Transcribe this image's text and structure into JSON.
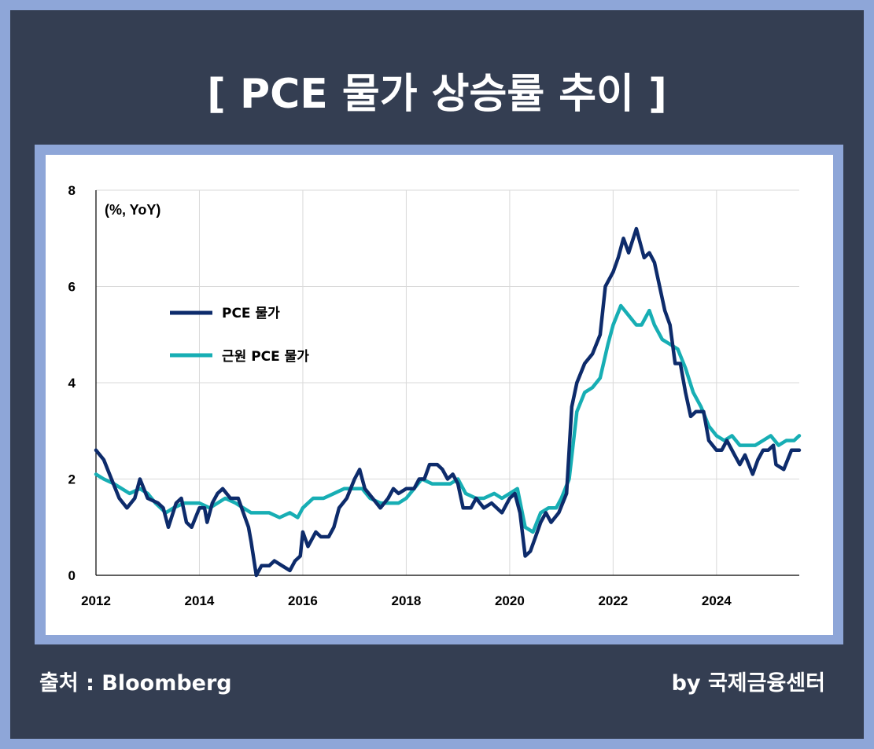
{
  "title": "[ PCE 물가 상승률 추이 ]",
  "footer": {
    "source": "출처 : Bloomberg",
    "credit": "by 국제금융센터"
  },
  "colors": {
    "background": "#343e52",
    "border": "#8ea6d8",
    "series_pce": "#0d2b6b",
    "series_core": "#17aeb4"
  },
  "chart_data": {
    "type": "line",
    "unit_label": "(%, YoY)",
    "xlabel": "",
    "ylabel": "",
    "xlim": [
      2012.0,
      2025.6
    ],
    "ylim": [
      0,
      8
    ],
    "x_ticks": [
      "2012",
      "2014",
      "2016",
      "2018",
      "2020",
      "2022",
      "2024"
    ],
    "y_ticks": [
      "0",
      "2",
      "4",
      "6",
      "8"
    ],
    "grid": true,
    "legend_position": "upper-left",
    "series": [
      {
        "name": "PCE 물가",
        "color": "#0d2b6b",
        "points": [
          [
            2012.0,
            2.6
          ],
          [
            2012.15,
            2.4
          ],
          [
            2012.3,
            2.0
          ],
          [
            2012.45,
            1.6
          ],
          [
            2012.6,
            1.4
          ],
          [
            2012.75,
            1.6
          ],
          [
            2012.85,
            2.0
          ],
          [
            2013.0,
            1.6
          ],
          [
            2013.2,
            1.5
          ],
          [
            2013.3,
            1.4
          ],
          [
            2013.4,
            1.0
          ],
          [
            2013.55,
            1.5
          ],
          [
            2013.65,
            1.6
          ],
          [
            2013.75,
            1.1
          ],
          [
            2013.85,
            1.0
          ],
          [
            2014.0,
            1.4
          ],
          [
            2014.1,
            1.4
          ],
          [
            2014.15,
            1.1
          ],
          [
            2014.25,
            1.5
          ],
          [
            2014.35,
            1.7
          ],
          [
            2014.45,
            1.8
          ],
          [
            2014.6,
            1.6
          ],
          [
            2014.75,
            1.6
          ],
          [
            2014.85,
            1.3
          ],
          [
            2014.95,
            1.0
          ],
          [
            2015.0,
            0.7
          ],
          [
            2015.1,
            0.0
          ],
          [
            2015.2,
            0.2
          ],
          [
            2015.35,
            0.2
          ],
          [
            2015.45,
            0.3
          ],
          [
            2015.6,
            0.2
          ],
          [
            2015.75,
            0.1
          ],
          [
            2015.85,
            0.3
          ],
          [
            2015.95,
            0.4
          ],
          [
            2016.0,
            0.9
          ],
          [
            2016.1,
            0.6
          ],
          [
            2016.25,
            0.9
          ],
          [
            2016.35,
            0.8
          ],
          [
            2016.5,
            0.8
          ],
          [
            2016.6,
            1.0
          ],
          [
            2016.7,
            1.4
          ],
          [
            2016.85,
            1.6
          ],
          [
            2017.0,
            2.0
          ],
          [
            2017.1,
            2.2
          ],
          [
            2017.2,
            1.8
          ],
          [
            2017.35,
            1.6
          ],
          [
            2017.5,
            1.4
          ],
          [
            2017.65,
            1.6
          ],
          [
            2017.75,
            1.8
          ],
          [
            2017.85,
            1.7
          ],
          [
            2018.0,
            1.8
          ],
          [
            2018.15,
            1.8
          ],
          [
            2018.25,
            2.0
          ],
          [
            2018.35,
            2.0
          ],
          [
            2018.45,
            2.3
          ],
          [
            2018.6,
            2.3
          ],
          [
            2018.7,
            2.2
          ],
          [
            2018.8,
            2.0
          ],
          [
            2018.9,
            2.1
          ],
          [
            2019.0,
            1.9
          ],
          [
            2019.1,
            1.4
          ],
          [
            2019.25,
            1.4
          ],
          [
            2019.35,
            1.6
          ],
          [
            2019.5,
            1.4
          ],
          [
            2019.65,
            1.5
          ],
          [
            2019.75,
            1.4
          ],
          [
            2019.85,
            1.3
          ],
          [
            2020.0,
            1.6
          ],
          [
            2020.1,
            1.7
          ],
          [
            2020.2,
            1.3
          ],
          [
            2020.3,
            0.4
          ],
          [
            2020.4,
            0.5
          ],
          [
            2020.5,
            0.8
          ],
          [
            2020.6,
            1.1
          ],
          [
            2020.7,
            1.3
          ],
          [
            2020.8,
            1.1
          ],
          [
            2020.95,
            1.3
          ],
          [
            2021.1,
            1.7
          ],
          [
            2021.2,
            3.5
          ],
          [
            2021.3,
            4.0
          ],
          [
            2021.45,
            4.4
          ],
          [
            2021.6,
            4.6
          ],
          [
            2021.75,
            5.0
          ],
          [
            2021.85,
            6.0
          ],
          [
            2022.0,
            6.3
          ],
          [
            2022.1,
            6.6
          ],
          [
            2022.2,
            7.0
          ],
          [
            2022.3,
            6.7
          ],
          [
            2022.45,
            7.2
          ],
          [
            2022.6,
            6.6
          ],
          [
            2022.7,
            6.7
          ],
          [
            2022.8,
            6.5
          ],
          [
            2022.9,
            6.0
          ],
          [
            2023.0,
            5.5
          ],
          [
            2023.1,
            5.2
          ],
          [
            2023.2,
            4.4
          ],
          [
            2023.3,
            4.4
          ],
          [
            2023.4,
            3.8
          ],
          [
            2023.5,
            3.3
          ],
          [
            2023.6,
            3.4
          ],
          [
            2023.75,
            3.4
          ],
          [
            2023.85,
            2.8
          ],
          [
            2024.0,
            2.6
          ],
          [
            2024.1,
            2.6
          ],
          [
            2024.2,
            2.8
          ],
          [
            2024.35,
            2.5
          ],
          [
            2024.45,
            2.3
          ],
          [
            2024.55,
            2.5
          ],
          [
            2024.7,
            2.1
          ],
          [
            2024.8,
            2.4
          ],
          [
            2024.9,
            2.6
          ],
          [
            2025.0,
            2.6
          ],
          [
            2025.1,
            2.7
          ],
          [
            2025.15,
            2.3
          ],
          [
            2025.3,
            2.2
          ],
          [
            2025.45,
            2.6
          ],
          [
            2025.6,
            2.6
          ]
        ]
      },
      {
        "name": "근원 PCE 물가",
        "color": "#17aeb4",
        "points": [
          [
            2012.0,
            2.1
          ],
          [
            2012.15,
            2.0
          ],
          [
            2012.35,
            1.9
          ],
          [
            2012.5,
            1.8
          ],
          [
            2012.65,
            1.7
          ],
          [
            2012.85,
            1.8
          ],
          [
            2013.0,
            1.7
          ],
          [
            2013.15,
            1.5
          ],
          [
            2013.35,
            1.3
          ],
          [
            2013.5,
            1.4
          ],
          [
            2013.7,
            1.5
          ],
          [
            2013.85,
            1.5
          ],
          [
            2014.0,
            1.5
          ],
          [
            2014.2,
            1.4
          ],
          [
            2014.35,
            1.5
          ],
          [
            2014.5,
            1.6
          ],
          [
            2014.7,
            1.5
          ],
          [
            2014.85,
            1.4
          ],
          [
            2015.0,
            1.3
          ],
          [
            2015.15,
            1.3
          ],
          [
            2015.35,
            1.3
          ],
          [
            2015.55,
            1.2
          ],
          [
            2015.75,
            1.3
          ],
          [
            2015.9,
            1.2
          ],
          [
            2016.0,
            1.4
          ],
          [
            2016.2,
            1.6
          ],
          [
            2016.4,
            1.6
          ],
          [
            2016.6,
            1.7
          ],
          [
            2016.8,
            1.8
          ],
          [
            2017.0,
            1.8
          ],
          [
            2017.15,
            1.8
          ],
          [
            2017.3,
            1.6
          ],
          [
            2017.5,
            1.5
          ],
          [
            2017.7,
            1.5
          ],
          [
            2017.85,
            1.5
          ],
          [
            2018.0,
            1.6
          ],
          [
            2018.15,
            1.8
          ],
          [
            2018.3,
            2.0
          ],
          [
            2018.5,
            1.9
          ],
          [
            2018.7,
            1.9
          ],
          [
            2018.85,
            1.9
          ],
          [
            2019.0,
            2.0
          ],
          [
            2019.15,
            1.7
          ],
          [
            2019.35,
            1.6
          ],
          [
            2019.5,
            1.6
          ],
          [
            2019.7,
            1.7
          ],
          [
            2019.85,
            1.6
          ],
          [
            2020.0,
            1.7
          ],
          [
            2020.15,
            1.8
          ],
          [
            2020.3,
            1.0
          ],
          [
            2020.45,
            0.9
          ],
          [
            2020.6,
            1.3
          ],
          [
            2020.75,
            1.4
          ],
          [
            2020.9,
            1.4
          ],
          [
            2021.0,
            1.6
          ],
          [
            2021.15,
            2.0
          ],
          [
            2021.3,
            3.4
          ],
          [
            2021.45,
            3.8
          ],
          [
            2021.6,
            3.9
          ],
          [
            2021.75,
            4.1
          ],
          [
            2021.9,
            4.8
          ],
          [
            2022.0,
            5.2
          ],
          [
            2022.15,
            5.6
          ],
          [
            2022.3,
            5.4
          ],
          [
            2022.45,
            5.2
          ],
          [
            2022.55,
            5.2
          ],
          [
            2022.7,
            5.5
          ],
          [
            2022.8,
            5.2
          ],
          [
            2022.95,
            4.9
          ],
          [
            2023.1,
            4.8
          ],
          [
            2023.25,
            4.7
          ],
          [
            2023.4,
            4.3
          ],
          [
            2023.55,
            3.8
          ],
          [
            2023.7,
            3.5
          ],
          [
            2023.85,
            3.1
          ],
          [
            2024.0,
            2.9
          ],
          [
            2024.15,
            2.8
          ],
          [
            2024.3,
            2.9
          ],
          [
            2024.45,
            2.7
          ],
          [
            2024.6,
            2.7
          ],
          [
            2024.75,
            2.7
          ],
          [
            2024.9,
            2.8
          ],
          [
            2025.05,
            2.9
          ],
          [
            2025.2,
            2.7
          ],
          [
            2025.35,
            2.8
          ],
          [
            2025.5,
            2.8
          ],
          [
            2025.6,
            2.9
          ]
        ]
      }
    ]
  }
}
